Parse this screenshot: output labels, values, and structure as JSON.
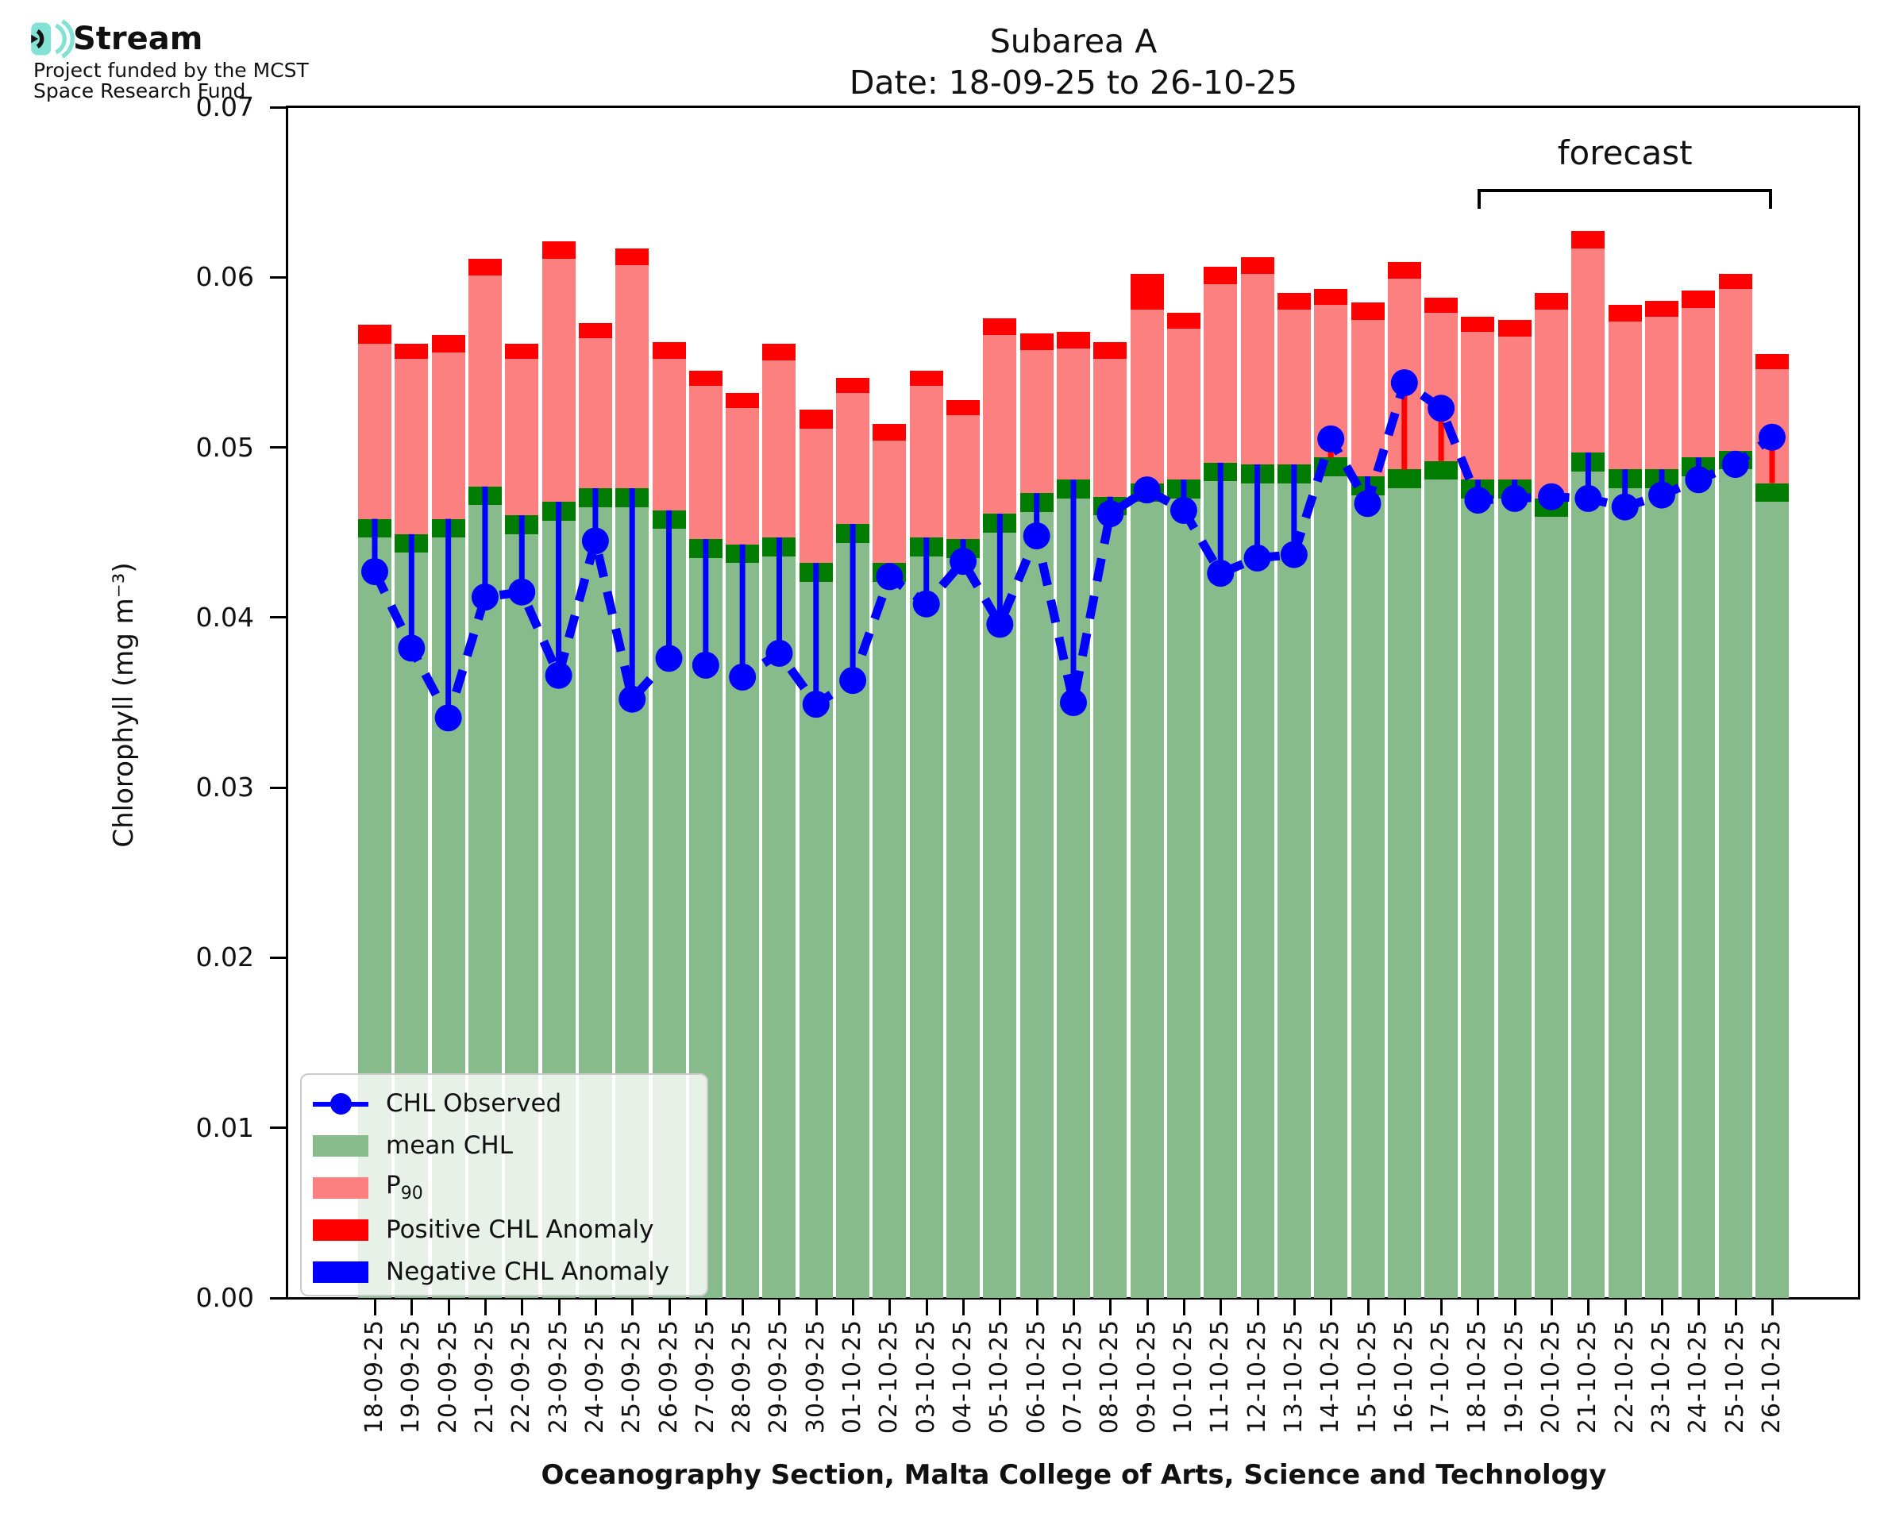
{
  "logo": {
    "brand": "Stream",
    "subtitle_line1": "Project funded by the MCST",
    "subtitle_line2": "Space Research Fund"
  },
  "title": {
    "line1": "Subarea A",
    "line2": "Date: 18-09-25 to 26-10-25"
  },
  "annotation": {
    "label": "forecast",
    "start_category": "18-10-25",
    "end_category": "26-10-25"
  },
  "axes": {
    "ylabel": "Chlorophyll (mg m⁻³)",
    "xlabel": "Oceanography Section, Malta College of Arts, Science and Technology",
    "ylim": [
      0,
      0.07
    ],
    "ytick_labels": [
      "0.00",
      "0.01",
      "0.02",
      "0.03",
      "0.04",
      "0.05",
      "0.06",
      "0.07"
    ],
    "yticks": [
      0,
      0.01,
      0.02,
      0.03,
      0.04,
      0.05,
      0.06,
      0.07
    ]
  },
  "legend": {
    "items": [
      {
        "label": "CHL Observed",
        "swatch": "blue-line-marker"
      },
      {
        "label": "mean CHL",
        "swatch": "green-patch"
      },
      {
        "label_main": "P",
        "label_sub": "90",
        "swatch": "salmon-patch"
      },
      {
        "label": "Positive CHL Anomaly",
        "swatch": "red-patch"
      },
      {
        "label": "Negative CHL Anomaly",
        "swatch": "blue-patch"
      }
    ]
  },
  "colors": {
    "mean_chl_fill": "#87BB8B",
    "mean_cap_fill": "#007D00",
    "p90_fill": "#FC8080",
    "positive_anomaly": "#FF0000",
    "negative_anomaly": "#0000FF",
    "observed_blue": "#0000FF",
    "logo_teal": "#84E2D5",
    "legend_border": "#CBCBCB"
  },
  "chart_data": {
    "type": "bar",
    "title": "Subarea A  Date: 18-09-25 to 26-10-25",
    "xlabel": "Oceanography Section, Malta College of Arts, Science and Technology",
    "ylabel": "Chlorophyll (mg m⁻³)",
    "ylim": [
      0,
      0.07
    ],
    "grid": false,
    "legend_position": "lower-left",
    "mean_cap_thickness": 0.0011,
    "categories": [
      "18-09-25",
      "19-09-25",
      "20-09-25",
      "21-09-25",
      "22-09-25",
      "23-09-25",
      "24-09-25",
      "25-09-25",
      "26-09-25",
      "27-09-25",
      "28-09-25",
      "29-09-25",
      "30-09-25",
      "01-10-25",
      "02-10-25",
      "03-10-25",
      "04-10-25",
      "05-10-25",
      "06-10-25",
      "07-10-25",
      "08-10-25",
      "09-10-25",
      "10-10-25",
      "11-10-25",
      "12-10-25",
      "13-10-25",
      "14-10-25",
      "15-10-25",
      "16-10-25",
      "17-10-25",
      "18-10-25",
      "19-10-25",
      "20-10-25",
      "21-10-25",
      "22-10-25",
      "23-10-25",
      "24-10-25",
      "25-10-25",
      "26-10-25"
    ],
    "series": [
      {
        "name": "mean CHL",
        "values": [
          0.0458,
          0.0449,
          0.0458,
          0.0477,
          0.046,
          0.0468,
          0.0476,
          0.0476,
          0.0463,
          0.0446,
          0.0443,
          0.0447,
          0.0432,
          0.0455,
          0.0432,
          0.0447,
          0.0446,
          0.0461,
          0.0473,
          0.0481,
          0.0471,
          0.0479,
          0.0481,
          0.0491,
          0.049,
          0.049,
          0.0494,
          0.0483,
          0.0487,
          0.0492,
          0.0481,
          0.0481,
          0.047,
          0.0497,
          0.0487,
          0.0487,
          0.0494,
          0.0498,
          0.0479
        ]
      },
      {
        "name": "P90",
        "values": [
          0.0561,
          0.0552,
          0.0556,
          0.0601,
          0.0552,
          0.0611,
          0.0564,
          0.0607,
          0.0552,
          0.0536,
          0.0523,
          0.0551,
          0.0511,
          0.0532,
          0.0504,
          0.0536,
          0.0519,
          0.0566,
          0.0557,
          0.0558,
          0.0552,
          0.0581,
          0.057,
          0.0596,
          0.0602,
          0.0581,
          0.0584,
          0.0575,
          0.0599,
          0.0579,
          0.0568,
          0.0565,
          0.0581,
          0.0617,
          0.0574,
          0.0577,
          0.0582,
          0.0593,
          0.0546
        ]
      },
      {
        "name": "bar top (P90 + positive anomaly cap)",
        "values": [
          0.0572,
          0.0561,
          0.0566,
          0.0611,
          0.0561,
          0.0621,
          0.0573,
          0.0617,
          0.0562,
          0.0545,
          0.0532,
          0.0561,
          0.0522,
          0.0541,
          0.0514,
          0.0545,
          0.0528,
          0.0576,
          0.0567,
          0.0568,
          0.0562,
          0.0602,
          0.0579,
          0.0606,
          0.0612,
          0.0591,
          0.0593,
          0.0585,
          0.0609,
          0.0588,
          0.0577,
          0.0575,
          0.0591,
          0.0627,
          0.0584,
          0.0586,
          0.0592,
          0.0602,
          0.0555
        ]
      },
      {
        "name": "CHL Observed",
        "values": [
          0.0427,
          0.0382,
          0.0341,
          0.0412,
          0.0415,
          0.0366,
          0.0445,
          0.0352,
          0.0376,
          0.0372,
          0.0365,
          0.0379,
          0.0349,
          0.0363,
          0.0424,
          0.0408,
          0.0433,
          0.0396,
          0.0448,
          0.035,
          0.0461,
          0.0475,
          0.0463,
          0.0426,
          0.0435,
          0.0437,
          0.0505,
          0.0467,
          0.0538,
          0.0523,
          0.0469,
          0.047,
          0.0471,
          0.047,
          0.0465,
          0.0472,
          0.0481,
          0.049,
          0.0506
        ]
      }
    ]
  }
}
